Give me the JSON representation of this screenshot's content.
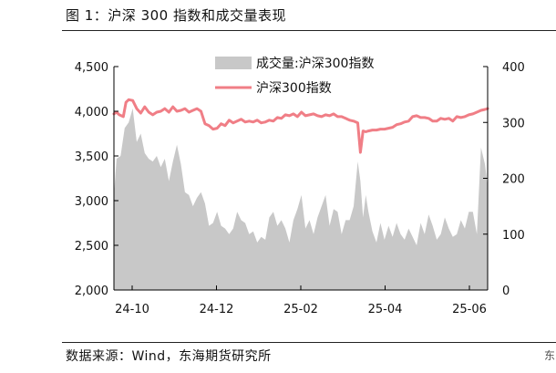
{
  "header": {
    "title": "图 1：沪深 300 指数和成交量表现"
  },
  "footer": {
    "source": "数据来源：Wind，东海期货研究所",
    "edge_mark": "东"
  },
  "colors": {
    "volume": "#c8c8c8",
    "index": "#f07e86",
    "axis": "#000000"
  },
  "chart_data": {
    "type": "area+line",
    "title": "",
    "legend_position": "top-center",
    "grid": false,
    "x_ticks": [
      "24-10",
      "24-12",
      "25-02",
      "25-04",
      "25-06"
    ],
    "x_range": [
      "2024-10-01",
      "2025-07-07"
    ],
    "y_left": {
      "min": 2000,
      "max": 4500,
      "ticks": [
        "2,000",
        "2,500",
        "3,000",
        "3,500",
        "4,000",
        "4,500"
      ]
    },
    "y_right": {
      "min": 0,
      "max": 400,
      "ticks": [
        "0",
        "100",
        "200",
        "300",
        "400"
      ]
    },
    "series": [
      {
        "name": "成交量:沪深300指数",
        "type": "area",
        "axis": "right",
        "x": [
          "2024-10-01",
          "2024-10-03",
          "2024-10-06",
          "2024-10-09",
          "2024-10-12",
          "2024-10-15",
          "2024-10-18",
          "2024-10-21",
          "2024-10-24",
          "2024-10-27",
          "2024-10-30",
          "2024-11-02",
          "2024-11-05",
          "2024-11-08",
          "2024-11-11",
          "2024-11-14",
          "2024-11-17",
          "2024-11-20",
          "2024-11-23",
          "2024-11-26",
          "2024-11-29",
          "2024-12-02",
          "2024-12-05",
          "2024-12-08",
          "2024-12-11",
          "2024-12-14",
          "2024-12-17",
          "2024-12-20",
          "2024-12-23",
          "2024-12-26",
          "2024-12-29",
          "2025-01-01",
          "2025-01-04",
          "2025-01-07",
          "2025-01-10",
          "2025-01-13",
          "2025-01-16",
          "2025-01-19",
          "2025-01-22",
          "2025-01-25",
          "2025-01-28",
          "2025-01-31",
          "2025-02-03",
          "2025-02-06",
          "2025-02-09",
          "2025-02-12",
          "2025-02-15",
          "2025-02-18",
          "2025-02-21",
          "2025-02-24",
          "2025-02-27",
          "2025-03-02",
          "2025-03-05",
          "2025-03-08",
          "2025-03-11",
          "2025-03-14",
          "2025-03-17",
          "2025-03-20",
          "2025-03-23",
          "2025-03-26",
          "2025-03-29",
          "2025-04-01",
          "2025-04-03",
          "2025-04-05",
          "2025-04-07",
          "2025-04-09",
          "2025-04-12",
          "2025-04-15",
          "2025-04-18",
          "2025-04-21",
          "2025-04-24",
          "2025-04-27",
          "2025-04-30",
          "2025-05-03",
          "2025-05-06",
          "2025-05-09",
          "2025-05-12",
          "2025-05-15",
          "2025-05-18",
          "2025-05-21",
          "2025-05-24",
          "2025-05-27",
          "2025-05-30",
          "2025-06-02",
          "2025-06-05",
          "2025-06-08",
          "2025-06-11",
          "2025-06-14",
          "2025-06-17",
          "2025-06-20",
          "2025-06-23",
          "2025-06-26",
          "2025-06-29",
          "2025-07-02",
          "2025-07-05",
          "2025-07-07"
        ],
        "values": [
          170,
          235,
          240,
          290,
          300,
          325,
          265,
          280,
          245,
          235,
          230,
          240,
          220,
          235,
          195,
          230,
          260,
          225,
          175,
          170,
          150,
          165,
          175,
          155,
          115,
          120,
          140,
          115,
          110,
          100,
          110,
          140,
          125,
          120,
          100,
          105,
          85,
          95,
          90,
          130,
          140,
          115,
          125,
          110,
          85,
          125,
          145,
          170,
          110,
          125,
          100,
          130,
          150,
          170,
          115,
          145,
          140,
          100,
          125,
          125,
          150,
          230,
          195,
          130,
          170,
          140,
          105,
          85,
          120,
          90,
          115,
          95,
          120,
          100,
          90,
          110,
          95,
          80,
          120,
          100,
          135,
          115,
          90,
          100,
          130,
          110,
          95,
          100,
          125,
          110,
          140,
          140,
          100,
          255,
          225,
          185
        ]
      },
      {
        "name": "沪深300指数",
        "type": "line",
        "axis": "left",
        "x": [
          "2024-10-01",
          "2024-10-03",
          "2024-10-05",
          "2024-10-08",
          "2024-10-10",
          "2024-10-12",
          "2024-10-15",
          "2024-10-18",
          "2024-10-21",
          "2024-10-24",
          "2024-10-27",
          "2024-10-30",
          "2024-11-02",
          "2024-11-05",
          "2024-11-08",
          "2024-11-11",
          "2024-11-14",
          "2024-11-17",
          "2024-11-20",
          "2024-11-23",
          "2024-11-26",
          "2024-11-29",
          "2024-12-02",
          "2024-12-05",
          "2024-12-08",
          "2024-12-11",
          "2024-12-14",
          "2024-12-17",
          "2024-12-20",
          "2024-12-23",
          "2024-12-26",
          "2024-12-29",
          "2025-01-01",
          "2025-01-04",
          "2025-01-07",
          "2025-01-10",
          "2025-01-13",
          "2025-01-16",
          "2025-01-19",
          "2025-01-22",
          "2025-01-25",
          "2025-01-28",
          "2025-01-31",
          "2025-02-03",
          "2025-02-06",
          "2025-02-09",
          "2025-02-12",
          "2025-02-15",
          "2025-02-18",
          "2025-02-21",
          "2025-02-24",
          "2025-02-27",
          "2025-03-02",
          "2025-03-05",
          "2025-03-08",
          "2025-03-11",
          "2025-03-14",
          "2025-03-17",
          "2025-03-20",
          "2025-03-23",
          "2025-03-26",
          "2025-03-29",
          "2025-04-01",
          "2025-04-03",
          "2025-04-05",
          "2025-04-07",
          "2025-04-09",
          "2025-04-12",
          "2025-04-15",
          "2025-04-18",
          "2025-04-21",
          "2025-04-24",
          "2025-04-27",
          "2025-04-30",
          "2025-05-03",
          "2025-05-06",
          "2025-05-09",
          "2025-05-12",
          "2025-05-15",
          "2025-05-18",
          "2025-05-21",
          "2025-05-24",
          "2025-05-27",
          "2025-05-30",
          "2025-06-02",
          "2025-06-05",
          "2025-06-08",
          "2025-06-11",
          "2025-06-14",
          "2025-06-17",
          "2025-06-20",
          "2025-06-23",
          "2025-06-26",
          "2025-06-29",
          "2025-07-02",
          "2025-07-05",
          "2025-07-07"
        ],
        "values": [
          3970,
          3990,
          3960,
          3940,
          4100,
          4130,
          4120,
          4030,
          3980,
          4050,
          3990,
          3960,
          3990,
          4000,
          4030,
          3990,
          4050,
          4000,
          4010,
          4030,
          3990,
          4010,
          4030,
          4000,
          3860,
          3840,
          3800,
          3810,
          3860,
          3840,
          3900,
          3870,
          3890,
          3910,
          3880,
          3890,
          3880,
          3900,
          3870,
          3880,
          3900,
          3890,
          3930,
          3920,
          3960,
          3950,
          3970,
          3940,
          3990,
          3950,
          3960,
          3970,
          3950,
          3940,
          3960,
          3950,
          3970,
          3940,
          3940,
          3920,
          3900,
          3890,
          3870,
          3540,
          3780,
          3770,
          3780,
          3790,
          3790,
          3800,
          3800,
          3810,
          3820,
          3850,
          3860,
          3880,
          3890,
          3940,
          3950,
          3930,
          3930,
          3920,
          3890,
          3890,
          3920,
          3910,
          3920,
          3890,
          3940,
          3930,
          3940,
          3960,
          3970,
          3990,
          4010,
          4020,
          4030
        ]
      }
    ]
  }
}
